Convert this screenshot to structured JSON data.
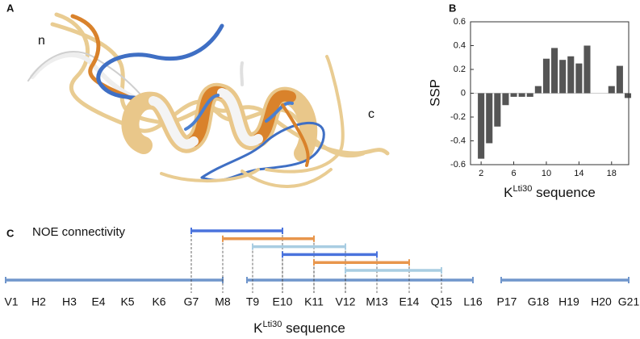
{
  "panel_labels": [
    "A",
    "B",
    "C"
  ],
  "structure": {
    "n_label": "n",
    "c_label": "c"
  },
  "chart_data": {
    "type": "bar",
    "y_label": "SSP",
    "x_label": {
      "base": "K",
      "sup": "Lti30",
      "rest": " sequence"
    },
    "x": [
      2,
      3,
      4,
      5,
      6,
      7,
      8,
      9,
      10,
      11,
      12,
      13,
      14,
      15,
      16,
      17,
      18,
      19,
      20
    ],
    "values": [
      -0.55,
      -0.42,
      -0.28,
      -0.1,
      -0.03,
      -0.03,
      -0.03,
      0.06,
      0.29,
      0.38,
      0.28,
      0.31,
      0.25,
      0.4,
      null,
      null,
      0.06,
      0.23,
      -0.04
    ],
    "color": "#555555",
    "xlim": [
      0.7,
      20.1
    ],
    "xticks": [
      2,
      6,
      10,
      14,
      18
    ],
    "ylim": [
      -0.6,
      0.6
    ],
    "yticks": [
      -0.6,
      -0.4,
      -0.2,
      0,
      0.2,
      0.4,
      0.6
    ]
  },
  "noe": {
    "title": "NOE connectivity",
    "residues": [
      "V1",
      "H2",
      "H3",
      "E4",
      "K5",
      "K6",
      "G7",
      "M8",
      "T9",
      "E10",
      "K11",
      "V12",
      "M13",
      "E14",
      "Q15",
      "L16",
      "P17",
      "G18",
      "H19",
      "H20",
      "G21"
    ],
    "segments": [
      [
        1,
        8
      ],
      [
        9,
        16
      ],
      [
        17,
        21
      ]
    ],
    "segment_color": "#7096cc",
    "connections": [
      {
        "from": 7,
        "to": 10,
        "color": "#4a73dd"
      },
      {
        "from": 8,
        "to": 11,
        "color": "#e8964c"
      },
      {
        "from": 9,
        "to": 12,
        "color": "#a9cde2"
      },
      {
        "from": 10,
        "to": 13,
        "color": "#4a73dd"
      },
      {
        "from": 11,
        "to": 14,
        "color": "#e8964c"
      },
      {
        "from": 12,
        "to": 15,
        "color": "#a9cde2"
      }
    ],
    "x_label": {
      "base": "K",
      "sup": "Lti30",
      "rest": " sequence"
    }
  }
}
